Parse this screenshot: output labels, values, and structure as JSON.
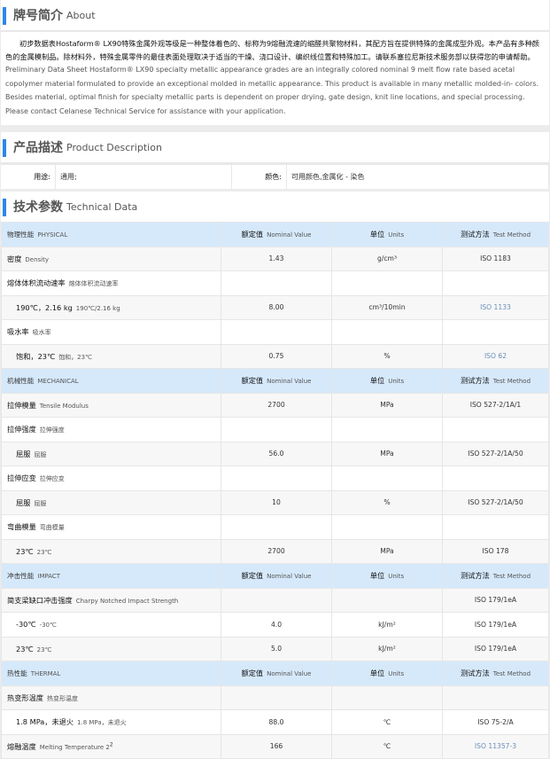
{
  "about": {
    "title_cn": "牌号简介",
    "title_en": "About",
    "text_cn": "初步数据表Hostaform® LX90特殊金属外观等级是一种整体着色的、标称为9熔融流速的缩醛共聚物材料，其配方旨在提供特殊的金属成型外观。本产品有多种颜色的金属模制品。除材料外，特殊金属零件的最佳表面处理取决于适当的干燥、浇口设计、编织线位置和特殊加工。请联系塞拉尼斯技术服务部以获得您的申请帮助。",
    "text_en": "Preliminary Data Sheet Hostaform® LX90 specialty metallic appearance grades are an integrally colored nominal 9 melt flow rate based acetal copolymer material formulated to provide an exceptional molded in metallic appearance. This product is available in many metallic molded-in- colors. Besides material, optimal finish for specialty metallic parts is dependent on proper drying, gate design, knit line locations, and special processing. Please contact Celanese Technical Service for assistance with your application."
  },
  "product": {
    "title_cn": "产品描述",
    "title_en": "Product Description",
    "use_label": "用途:",
    "use_value": "通用;",
    "color_label": "颜色:",
    "color_value": "可用颜色,金属化 - 染色"
  },
  "technical": {
    "title_cn": "技术参数",
    "title_en": "Technical Data",
    "col_headers": {
      "value_cn": "额定值",
      "value_en": "Nominal Value",
      "unit_cn": "单位",
      "unit_en": "Units",
      "method_cn": "测试方法",
      "method_en": "Test Method"
    },
    "rows": [
      {
        "type": "hdr",
        "cn": "物理性能",
        "en": "PHYSICAL"
      },
      {
        "cn": "密度",
        "en": "Density",
        "value": "1.43",
        "unit": "g/cm³",
        "method": "ISO 1183"
      },
      {
        "cn": "熔体体积流动速率",
        "en": "熔体体积流动速率",
        "value": "",
        "unit": "",
        "method": ""
      },
      {
        "indent": true,
        "cn": "190℃，2.16 kg",
        "en": "190℃/2.16 kg",
        "value": "8.00",
        "unit": "cm³/10min",
        "method": "ISO 1133",
        "link": true
      },
      {
        "cn": "吸水率",
        "en": "吸水率",
        "value": "",
        "unit": "",
        "method": ""
      },
      {
        "indent": true,
        "cn": "饱和，23℃",
        "en": "饱和，23℃",
        "value": "0.75",
        "unit": "%",
        "method": "ISO 62",
        "link": true
      },
      {
        "type": "hdr",
        "cn": "机械性能",
        "en": "MECHANICAL"
      },
      {
        "cn": "拉伸模量",
        "en": "Tensile Modulus",
        "value": "2700",
        "unit": "MPa",
        "method": "ISO 527-2/1A/1"
      },
      {
        "cn": "拉伸强度",
        "en": "拉伸强度",
        "value": "",
        "unit": "",
        "method": ""
      },
      {
        "indent": true,
        "cn": "屈服",
        "en": "屈服",
        "value": "56.0",
        "unit": "MPa",
        "method": "ISO 527-2/1A/50"
      },
      {
        "cn": "拉伸应变",
        "en": "拉伸应变",
        "value": "",
        "unit": "",
        "method": ""
      },
      {
        "indent": true,
        "cn": "屈服",
        "en": "屈服",
        "value": "10",
        "unit": "%",
        "method": "ISO 527-2/1A/50"
      },
      {
        "cn": "弯曲模量",
        "en": "弯曲模量",
        "value": "",
        "unit": "",
        "method": ""
      },
      {
        "indent": true,
        "cn": "23℃",
        "en": "23℃",
        "value": "2700",
        "unit": "MPa",
        "method": "ISO 178"
      },
      {
        "type": "hdr",
        "cn": "冲击性能",
        "en": "IMPACT"
      },
      {
        "cn": "简支梁缺口冲击强度",
        "en": "Charpy Notched Impact Strength",
        "value": "",
        "unit": "",
        "method": "ISO 179/1eA"
      },
      {
        "indent": true,
        "cn": "-30℃",
        "en": "-30℃",
        "value": "4.0",
        "unit": "kJ/m²",
        "method": "ISO 179/1eA"
      },
      {
        "indent": true,
        "cn": "23℃",
        "en": "23℃",
        "value": "5.0",
        "unit": "kJ/m²",
        "method": "ISO 179/1eA"
      },
      {
        "type": "hdr",
        "cn": "热性能",
        "en": "THERMAL"
      },
      {
        "cn": "热变形温度",
        "en": "热变形温度",
        "value": "",
        "unit": "",
        "method": ""
      },
      {
        "indent": true,
        "cn": "1.8 MPa，未退火",
        "en": "1.8 MPa，未退火",
        "value": "88.0",
        "unit": "℃",
        "method": "ISO 75-2/A"
      },
      {
        "cn": "熔融温度",
        "en": "Melting Temperature  2",
        "sup": "2",
        "value": "166",
        "unit": "℃",
        "method": "ISO 11357-3",
        "link": true
      }
    ]
  },
  "colors": {
    "accent": "#2f86e8",
    "header_bg": "#d6e9fb",
    "link": "#6a8fb8"
  }
}
